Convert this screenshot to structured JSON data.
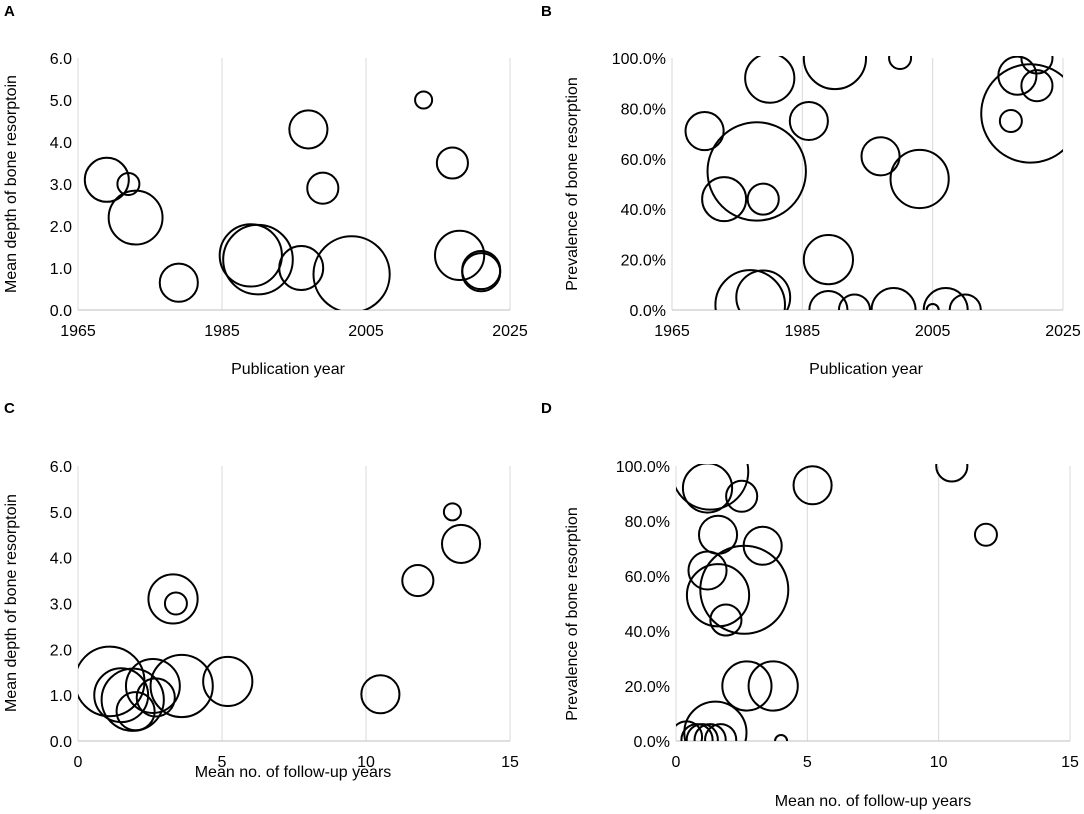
{
  "chart_data": [
    {
      "type": "scatter",
      "panel": "A",
      "title": "",
      "xlabel": "Publication year",
      "ylabel": "Mean depth of bone resorptoin",
      "xlim": [
        1965,
        2025
      ],
      "ylim": [
        0,
        6
      ],
      "xticks": [
        1965,
        1985,
        2005,
        2025
      ],
      "xtick_labels": [
        "1965",
        "1985",
        "2005",
        "2025"
      ],
      "yticks": [
        0,
        1,
        2,
        3,
        4,
        5,
        6
      ],
      "ytick_labels": [
        "0.0",
        "1.0",
        "2.0",
        "3.0",
        "4.0",
        "5.0",
        "6.0"
      ],
      "grid": "vertical",
      "bubble_size_note": "relative sample size",
      "points": [
        {
          "x": 1969,
          "y": 3.1,
          "size": 4
        },
        {
          "x": 1972,
          "y": 3.0,
          "size": 1
        },
        {
          "x": 1973,
          "y": 2.2,
          "size": 6
        },
        {
          "x": 1979,
          "y": 0.65,
          "size": 3
        },
        {
          "x": 1989,
          "y": 1.3,
          "size": 8
        },
        {
          "x": 1990,
          "y": 1.2,
          "size": 10
        },
        {
          "x": 1996,
          "y": 1.0,
          "size": 4
        },
        {
          "x": 1997,
          "y": 4.3,
          "size": 3
        },
        {
          "x": 1999,
          "y": 2.9,
          "size": 2
        },
        {
          "x": 2003,
          "y": 0.85,
          "size": 12
        },
        {
          "x": 2013,
          "y": 5.0,
          "size": 0.6
        },
        {
          "x": 2017,
          "y": 3.5,
          "size": 2
        },
        {
          "x": 2018,
          "y": 1.3,
          "size": 5
        },
        {
          "x": 2021,
          "y": 0.95,
          "size": 3
        },
        {
          "x": 2021,
          "y": 0.9,
          "size": 3
        }
      ]
    },
    {
      "type": "scatter",
      "panel": "B",
      "title": "",
      "xlabel": "Publication year",
      "ylabel": "Prevalence of bone resorption",
      "xlim": [
        1965,
        2025
      ],
      "ylim": [
        0,
        100
      ],
      "xticks": [
        1965,
        1985,
        2005,
        2025
      ],
      "xtick_labels": [
        "1965",
        "1985",
        "2005",
        "2025"
      ],
      "yticks": [
        0,
        20,
        40,
        60,
        80,
        100
      ],
      "ytick_labels": [
        "0.0%",
        "20.0%",
        "40.0%",
        "60.0%",
        "80.0%",
        "100.0%"
      ],
      "grid": "vertical",
      "bubble_size_note": "relative sample size",
      "points": [
        {
          "x": 1970,
          "y": 71,
          "size": 3
        },
        {
          "x": 1973,
          "y": 44,
          "size": 4
        },
        {
          "x": 1977,
          "y": 2,
          "size": 10
        },
        {
          "x": 1978,
          "y": 55,
          "size": 20
        },
        {
          "x": 1979,
          "y": 5,
          "size": 6
        },
        {
          "x": 1979,
          "y": 44,
          "size": 2
        },
        {
          "x": 1980,
          "y": 92,
          "size": 5
        },
        {
          "x": 1986,
          "y": 75,
          "size": 3
        },
        {
          "x": 1989,
          "y": 0,
          "size": 3
        },
        {
          "x": 1989,
          "y": 20,
          "size": 5
        },
        {
          "x": 1990,
          "y": 100,
          "size": 8
        },
        {
          "x": 1993,
          "y": 0,
          "size": 2
        },
        {
          "x": 1997,
          "y": 61,
          "size": 3
        },
        {
          "x": 1999,
          "y": 0,
          "size": 4
        },
        {
          "x": 2000,
          "y": 100,
          "size": 1
        },
        {
          "x": 2003,
          "y": 52,
          "size": 7
        },
        {
          "x": 2005,
          "y": 0,
          "size": 0.3
        },
        {
          "x": 2007,
          "y": 0,
          "size": 4
        },
        {
          "x": 2010,
          "y": 0,
          "size": 2
        },
        {
          "x": 2017,
          "y": 75,
          "size": 1
        },
        {
          "x": 2018,
          "y": 93,
          "size": 3
        },
        {
          "x": 2020,
          "y": 78,
          "size": 20
        },
        {
          "x": 2021,
          "y": 89,
          "size": 2
        },
        {
          "x": 2021,
          "y": 100,
          "size": 2
        }
      ]
    },
    {
      "type": "scatter",
      "panel": "C",
      "title": "",
      "xlabel": "Mean no. of follow-up years",
      "ylabel": "Mean depth of bone resorptoin",
      "xlim": [
        0,
        15
      ],
      "ylim": [
        0,
        6
      ],
      "xticks": [
        0,
        5,
        10,
        15
      ],
      "xtick_labels": [
        "0",
        "5",
        "10",
        "15"
      ],
      "yticks": [
        0,
        1,
        2,
        3,
        4,
        5,
        6
      ],
      "ytick_labels": [
        "0.0",
        "1.0",
        "2.0",
        "3.0",
        "4.0",
        "5.0",
        "6.0"
      ],
      "grid": "vertical",
      "bubble_size_note": "relative sample size",
      "points": [
        {
          "x": 1.1,
          "y": 1.3,
          "size": 10
        },
        {
          "x": 1.5,
          "y": 1.0,
          "size": 6
        },
        {
          "x": 1.9,
          "y": 0.9,
          "size": 8
        },
        {
          "x": 2.0,
          "y": 0.65,
          "size": 3
        },
        {
          "x": 2.6,
          "y": 1.2,
          "size": 6
        },
        {
          "x": 2.7,
          "y": 0.95,
          "size": 3
        },
        {
          "x": 3.3,
          "y": 3.1,
          "size": 5
        },
        {
          "x": 3.6,
          "y": 1.2,
          "size": 8
        },
        {
          "x": 3.4,
          "y": 3.0,
          "size": 1
        },
        {
          "x": 5.2,
          "y": 1.3,
          "size": 5
        },
        {
          "x": 10.5,
          "y": 1.02,
          "size": 3
        },
        {
          "x": 11.8,
          "y": 3.5,
          "size": 2
        },
        {
          "x": 13.0,
          "y": 5.0,
          "size": 0.6
        },
        {
          "x": 13.3,
          "y": 4.3,
          "size": 3
        }
      ]
    },
    {
      "type": "scatter",
      "panel": "D",
      "title": "",
      "xlabel": "Mean no. of follow-up years",
      "ylabel": "Prevalence of bone resorption",
      "xlim": [
        0,
        15
      ],
      "ylim": [
        0,
        100
      ],
      "xticks": [
        0,
        5,
        10,
        15
      ],
      "xtick_labels": [
        "0",
        "5",
        "10",
        "15"
      ],
      "yticks": [
        0,
        20,
        40,
        60,
        80,
        100
      ],
      "ytick_labels": [
        "0.0%",
        "20.0%",
        "40.0%",
        "60.0%",
        "80.0%",
        "100.0%"
      ],
      "grid": "vertical",
      "bubble_size_note": "relative sample size",
      "points": [
        {
          "x": 1.3,
          "y": 98,
          "size": 12
        },
        {
          "x": 1.2,
          "y": 92,
          "size": 5
        },
        {
          "x": 2.5,
          "y": 89,
          "size": 2
        },
        {
          "x": 1.6,
          "y": 75,
          "size": 3
        },
        {
          "x": 3.3,
          "y": 71,
          "size": 3
        },
        {
          "x": 1.2,
          "y": 62,
          "size": 3
        },
        {
          "x": 1.6,
          "y": 53,
          "size": 8
        },
        {
          "x": 2.6,
          "y": 55,
          "size": 16
        },
        {
          "x": 1.9,
          "y": 44,
          "size": 2
        },
        {
          "x": 2.7,
          "y": 20,
          "size": 5
        },
        {
          "x": 3.7,
          "y": 20,
          "size": 5
        },
        {
          "x": 0.4,
          "y": 1.5,
          "size": 2
        },
        {
          "x": 0.8,
          "y": 0.5,
          "size": 2
        },
        {
          "x": 1.0,
          "y": 0.5,
          "size": 2
        },
        {
          "x": 1.3,
          "y": 0.5,
          "size": 2
        },
        {
          "x": 1.5,
          "y": 3,
          "size": 8
        },
        {
          "x": 1.7,
          "y": 0.5,
          "size": 2
        },
        {
          "x": 4.0,
          "y": 0,
          "size": 0.3
        },
        {
          "x": 5.2,
          "y": 93,
          "size": 3
        },
        {
          "x": 10.5,
          "y": 100,
          "size": 2
        },
        {
          "x": 11.8,
          "y": 75,
          "size": 1
        }
      ]
    }
  ]
}
